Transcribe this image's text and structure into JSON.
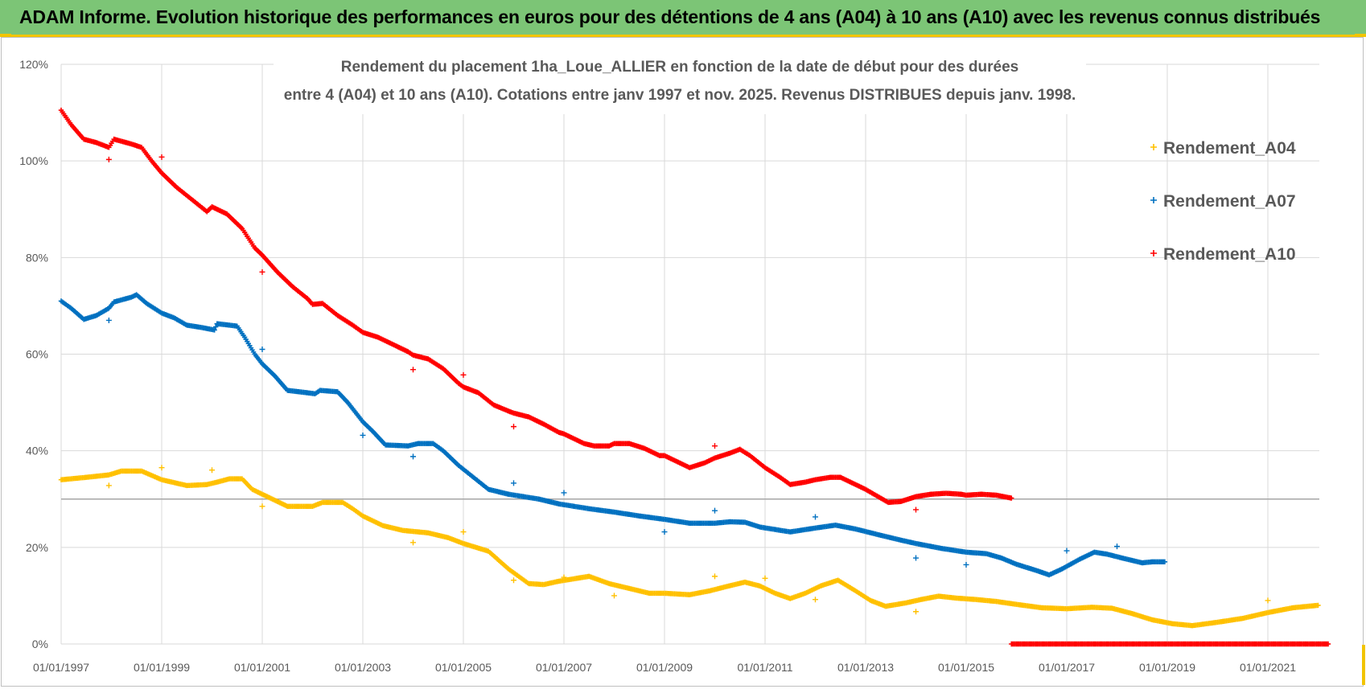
{
  "header": {
    "title": "ADAM Informe. Evolution historique des performances en euros pour des détentions de 4 ans (A04) à 10 ans (A10) avec les revenus connus distribués"
  },
  "chart_data": {
    "type": "scatter",
    "title_line1": "Rendement du placement 1ha_Loue_ALLIER  en fonction de la date de début pour des durées",
    "title_line2": "entre 4 (A04) et 10 ans (A10).  Cotations entre janv 1997 et nov. 2025. Revenus DISTRIBUES depuis janv. 1998.",
    "xlabel": "",
    "ylabel": "",
    "xlim": [
      1997.0,
      2022.2
    ],
    "ylim": [
      0,
      120
    ],
    "x_tick_labels": [
      "01/01/1997",
      "01/01/1999",
      "01/01/2001",
      "01/01/2003",
      "01/01/2005",
      "01/01/2007",
      "01/01/2009",
      "01/01/2011",
      "01/01/2013",
      "01/01/2015",
      "01/01/2017",
      "01/01/2019",
      "01/01/2021"
    ],
    "x_tick_values": [
      1997,
      1999,
      2001,
      2003,
      2005,
      2007,
      2009,
      2011,
      2013,
      2015,
      2017,
      2019,
      2021
    ],
    "y_tick_labels": [
      "0%",
      "20%",
      "40%",
      "60%",
      "80%",
      "100%",
      "120%"
    ],
    "y_tick_values": [
      0,
      20,
      40,
      60,
      80,
      100,
      120
    ],
    "reference_line": 30,
    "legend_position": "top-right",
    "series": [
      {
        "name": "Rendement_A04",
        "color": "#ffc000",
        "points": [
          [
            1997.0,
            34
          ],
          [
            1997.5,
            34.5
          ],
          [
            1997.95,
            35
          ],
          [
            1998.2,
            35.8
          ],
          [
            1998.6,
            35.8
          ],
          [
            1999.0,
            34
          ],
          [
            1999.5,
            32.8
          ],
          [
            1999.9,
            33
          ],
          [
            2000.1,
            33.5
          ],
          [
            2000.35,
            34.2
          ],
          [
            2000.6,
            34.2
          ],
          [
            2000.8,
            32
          ],
          [
            2001.0,
            31
          ],
          [
            2001.3,
            29.5
          ],
          [
            2001.5,
            28.5
          ],
          [
            2002.0,
            28.5
          ],
          [
            2002.2,
            29.3
          ],
          [
            2002.6,
            29.3
          ],
          [
            2002.8,
            28
          ],
          [
            2003.0,
            26.5
          ],
          [
            2003.4,
            24.5
          ],
          [
            2003.8,
            23.5
          ],
          [
            2004.3,
            23
          ],
          [
            2004.7,
            22
          ],
          [
            2005.0,
            20.8
          ],
          [
            2005.5,
            19.2
          ],
          [
            2005.9,
            15.5
          ],
          [
            2006.3,
            12.5
          ],
          [
            2006.6,
            12.3
          ],
          [
            2006.9,
            13
          ],
          [
            2007.2,
            13.5
          ],
          [
            2007.5,
            14
          ],
          [
            2007.9,
            12.5
          ],
          [
            2008.3,
            11.5
          ],
          [
            2008.7,
            10.5
          ],
          [
            2009.0,
            10.5
          ],
          [
            2009.5,
            10.2
          ],
          [
            2009.9,
            11
          ],
          [
            2010.2,
            11.8
          ],
          [
            2010.6,
            12.8
          ],
          [
            2010.9,
            12
          ],
          [
            2011.2,
            10.5
          ],
          [
            2011.5,
            9.4
          ],
          [
            2011.8,
            10.5
          ],
          [
            2012.1,
            12
          ],
          [
            2012.45,
            13.2
          ],
          [
            2012.8,
            11
          ],
          [
            2013.1,
            9
          ],
          [
            2013.4,
            7.8
          ],
          [
            2013.8,
            8.5
          ],
          [
            2014.1,
            9.2
          ],
          [
            2014.45,
            9.9
          ],
          [
            2014.8,
            9.5
          ],
          [
            2015.2,
            9.2
          ],
          [
            2015.6,
            8.8
          ],
          [
            2016.0,
            8.2
          ],
          [
            2016.5,
            7.5
          ],
          [
            2017.0,
            7.3
          ],
          [
            2017.5,
            7.6
          ],
          [
            2017.9,
            7.4
          ],
          [
            2018.3,
            6.3
          ],
          [
            2018.7,
            5
          ],
          [
            2019.1,
            4.2
          ],
          [
            2019.5,
            3.8
          ],
          [
            2020.0,
            4.5
          ],
          [
            2020.5,
            5.3
          ],
          [
            2021.0,
            6.5
          ],
          [
            2021.5,
            7.5
          ],
          [
            2022.0,
            8.0
          ]
        ],
        "outliers": [
          [
            1997.95,
            32.8
          ],
          [
            1999.0,
            36.5
          ],
          [
            2000.0,
            36
          ],
          [
            2001.0,
            28.5
          ],
          [
            2004.0,
            21
          ],
          [
            2005.0,
            23.2
          ],
          [
            2006.0,
            13.2
          ],
          [
            2007.0,
            13.8
          ],
          [
            2008.0,
            10
          ],
          [
            2010.0,
            14
          ],
          [
            2011.0,
            13.6
          ],
          [
            2012.0,
            9.2
          ],
          [
            2014.0,
            6.7
          ],
          [
            2021.0,
            9
          ]
        ]
      },
      {
        "name": "Rendement_A07",
        "color": "#0070c0",
        "points": [
          [
            1997.0,
            71
          ],
          [
            1997.2,
            69.5
          ],
          [
            1997.45,
            67.2
          ],
          [
            1997.7,
            68
          ],
          [
            1997.95,
            69.5
          ],
          [
            1998.05,
            70.8
          ],
          [
            1998.4,
            71.8
          ],
          [
            1998.5,
            72.3
          ],
          [
            1998.7,
            70.5
          ],
          [
            1999.0,
            68.5
          ],
          [
            1999.25,
            67.5
          ],
          [
            1999.5,
            66
          ],
          [
            1999.8,
            65.5
          ],
          [
            2000.05,
            65
          ],
          [
            2000.1,
            66.3
          ],
          [
            2000.35,
            66
          ],
          [
            2000.5,
            65.8
          ],
          [
            2000.65,
            63.5
          ],
          [
            2000.85,
            60
          ],
          [
            2001.0,
            58
          ],
          [
            2001.25,
            55.5
          ],
          [
            2001.5,
            52.5
          ],
          [
            2001.9,
            52
          ],
          [
            2002.05,
            51.8
          ],
          [
            2002.15,
            52.5
          ],
          [
            2002.5,
            52.2
          ],
          [
            2002.7,
            50
          ],
          [
            2003.0,
            46
          ],
          [
            2003.2,
            44
          ],
          [
            2003.45,
            41.2
          ],
          [
            2003.9,
            41
          ],
          [
            2004.1,
            41.5
          ],
          [
            2004.4,
            41.5
          ],
          [
            2004.6,
            40
          ],
          [
            2004.9,
            37
          ],
          [
            2005.2,
            34.5
          ],
          [
            2005.5,
            32
          ],
          [
            2005.9,
            31
          ],
          [
            2006.5,
            30
          ],
          [
            2006.9,
            29
          ],
          [
            2007.5,
            28
          ],
          [
            2008.0,
            27.3
          ],
          [
            2008.5,
            26.5
          ],
          [
            2009.0,
            25.8
          ],
          [
            2009.5,
            25
          ],
          [
            2010.0,
            25
          ],
          [
            2010.3,
            25.3
          ],
          [
            2010.6,
            25.2
          ],
          [
            2010.9,
            24.2
          ],
          [
            2011.5,
            23.2
          ],
          [
            2012.0,
            24
          ],
          [
            2012.4,
            24.6
          ],
          [
            2012.8,
            23.8
          ],
          [
            2013.3,
            22.5
          ],
          [
            2013.7,
            21.5
          ],
          [
            2014.0,
            20.8
          ],
          [
            2014.5,
            19.8
          ],
          [
            2015.0,
            19
          ],
          [
            2015.4,
            18.7
          ],
          [
            2015.7,
            17.8
          ],
          [
            2016.0,
            16.5
          ],
          [
            2016.4,
            15.2
          ],
          [
            2016.65,
            14.3
          ],
          [
            2016.9,
            15.5
          ],
          [
            2017.25,
            17.5
          ],
          [
            2017.55,
            19
          ],
          [
            2017.8,
            18.6
          ],
          [
            2018.1,
            17.8
          ],
          [
            2018.5,
            16.8
          ],
          [
            2018.7,
            17
          ],
          [
            2018.95,
            17
          ]
        ],
        "outliers": [
          [
            1997.95,
            67
          ],
          [
            2001.0,
            61
          ],
          [
            2003.0,
            43.2
          ],
          [
            2004.0,
            38.8
          ],
          [
            2006.0,
            33.3
          ],
          [
            2007.0,
            31.3
          ],
          [
            2009.0,
            23.2
          ],
          [
            2010.0,
            27.6
          ],
          [
            2012.0,
            26.3
          ],
          [
            2014.0,
            17.8
          ],
          [
            2015.0,
            16.4
          ],
          [
            2017.0,
            19.3
          ],
          [
            2018.0,
            20.2
          ]
        ]
      },
      {
        "name": "Rendement_A10",
        "color": "#ff0000",
        "points": [
          [
            1997.0,
            110.5
          ],
          [
            1997.2,
            107.5
          ],
          [
            1997.45,
            104.5
          ],
          [
            1997.7,
            103.8
          ],
          [
            1997.95,
            102.8
          ],
          [
            1998.05,
            104.5
          ],
          [
            1998.4,
            103.5
          ],
          [
            1998.6,
            102.8
          ],
          [
            1998.8,
            100
          ],
          [
            1999.0,
            97.5
          ],
          [
            1999.3,
            94.5
          ],
          [
            1999.6,
            92
          ],
          [
            1999.9,
            89.5
          ],
          [
            2000.0,
            90.5
          ],
          [
            2000.3,
            89
          ],
          [
            2000.6,
            86
          ],
          [
            2000.85,
            82
          ],
          [
            2001.0,
            80.5
          ],
          [
            2001.3,
            77
          ],
          [
            2001.6,
            74
          ],
          [
            2001.9,
            71.5
          ],
          [
            2002.0,
            70.3
          ],
          [
            2002.2,
            70.5
          ],
          [
            2002.5,
            68
          ],
          [
            2002.8,
            66
          ],
          [
            2003.0,
            64.5
          ],
          [
            2003.3,
            63.5
          ],
          [
            2003.6,
            62
          ],
          [
            2003.9,
            60.5
          ],
          [
            2004.0,
            59.8
          ],
          [
            2004.3,
            59
          ],
          [
            2004.6,
            57
          ],
          [
            2004.9,
            54
          ],
          [
            2005.0,
            53.2
          ],
          [
            2005.3,
            52
          ],
          [
            2005.6,
            49.5
          ],
          [
            2005.9,
            48.2
          ],
          [
            2006.0,
            47.8
          ],
          [
            2006.3,
            47
          ],
          [
            2006.6,
            45.5
          ],
          [
            2006.9,
            43.8
          ],
          [
            2007.0,
            43.5
          ],
          [
            2007.4,
            41.5
          ],
          [
            2007.6,
            41
          ],
          [
            2007.9,
            41
          ],
          [
            2008.0,
            41.5
          ],
          [
            2008.3,
            41.5
          ],
          [
            2008.6,
            40.5
          ],
          [
            2008.9,
            39
          ],
          [
            2009.0,
            39
          ],
          [
            2009.3,
            37.5
          ],
          [
            2009.5,
            36.5
          ],
          [
            2009.8,
            37.5
          ],
          [
            2010.0,
            38.5
          ],
          [
            2010.3,
            39.5
          ],
          [
            2010.5,
            40.3
          ],
          [
            2010.7,
            39
          ],
          [
            2011.0,
            36.5
          ],
          [
            2011.3,
            34.5
          ],
          [
            2011.5,
            33
          ],
          [
            2011.8,
            33.5
          ],
          [
            2012.0,
            34
          ],
          [
            2012.3,
            34.5
          ],
          [
            2012.5,
            34.5
          ],
          [
            2012.8,
            33
          ],
          [
            2013.0,
            32
          ],
          [
            2013.2,
            30.8
          ],
          [
            2013.45,
            29.3
          ],
          [
            2013.7,
            29.5
          ],
          [
            2014.0,
            30.5
          ],
          [
            2014.3,
            31
          ],
          [
            2014.6,
            31.2
          ],
          [
            2014.9,
            31
          ],
          [
            2015.0,
            30.8
          ],
          [
            2015.3,
            31
          ],
          [
            2015.6,
            30.8
          ],
          [
            2015.9,
            30.2
          ],
          [
            2015.9,
            0
          ],
          [
            2022.2,
            0
          ]
        ],
        "outliers": [
          [
            1997.95,
            100.3
          ],
          [
            1999.0,
            100.8
          ],
          [
            2001.0,
            77
          ],
          [
            2004.0,
            56.8
          ],
          [
            2005.0,
            55.7
          ],
          [
            2006.0,
            45
          ],
          [
            2010.0,
            41
          ],
          [
            2014.0,
            27.8
          ]
        ]
      }
    ]
  }
}
